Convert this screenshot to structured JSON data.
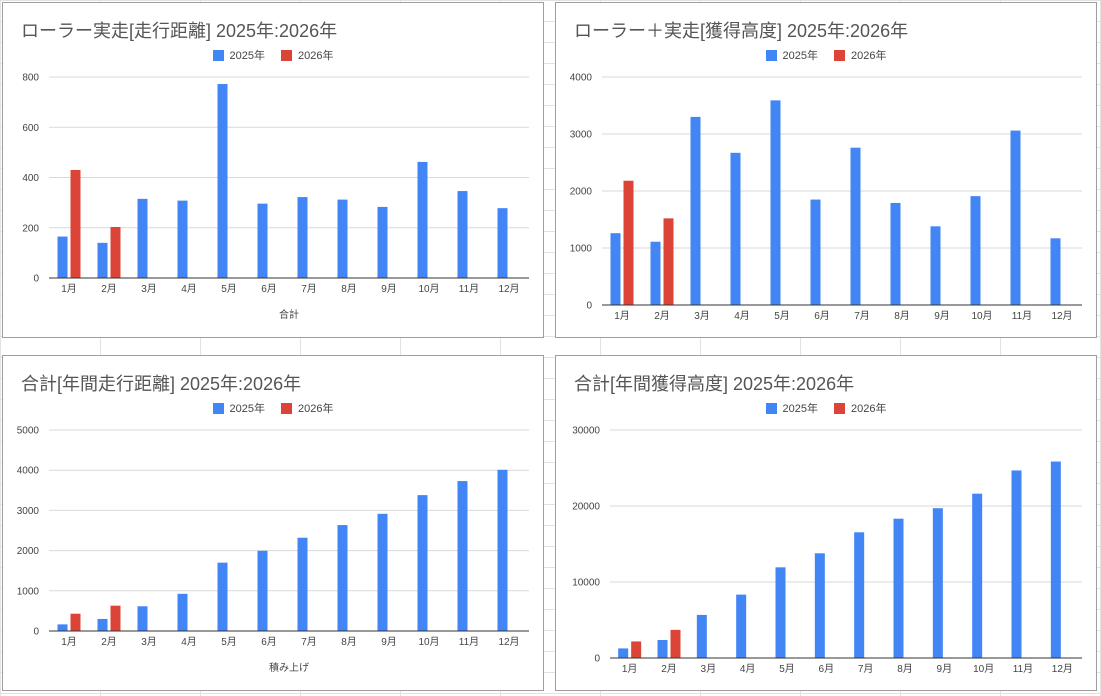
{
  "colors": {
    "series_2025": "#4285f4",
    "series_2026": "#db4437"
  },
  "chart_data": [
    {
      "type": "bar",
      "title": "ローラー実走[走行距離] 2025年:2026年",
      "xlabel": "合計",
      "ylabel": "",
      "categories": [
        "1月",
        "2月",
        "3月",
        "4月",
        "5月",
        "6月",
        "7月",
        "8月",
        "9月",
        "10月",
        "11月",
        "12月"
      ],
      "series": [
        {
          "name": "2025年",
          "values": [
            165,
            140,
            315,
            308,
            772,
            296,
            322,
            312,
            283,
            462,
            346,
            278
          ]
        },
        {
          "name": "2026年",
          "values": [
            430,
            203,
            null,
            null,
            null,
            null,
            null,
            null,
            null,
            null,
            null,
            null
          ]
        }
      ],
      "yticks": [
        0,
        200,
        400,
        600,
        800
      ],
      "ylim": [
        0,
        800
      ],
      "legend": "top",
      "grid": true
    },
    {
      "type": "bar",
      "title": "ローラー＋実走[獲得高度] 2025年:2026年",
      "xlabel": "",
      "ylabel": "",
      "categories": [
        "1月",
        "2月",
        "3月",
        "4月",
        "5月",
        "6月",
        "7月",
        "8月",
        "9月",
        "10月",
        "11月",
        "12月"
      ],
      "series": [
        {
          "name": "2025年",
          "values": [
            1260,
            1110,
            3300,
            2670,
            3590,
            1850,
            2760,
            1790,
            1380,
            1910,
            3060,
            1170
          ]
        },
        {
          "name": "2026年",
          "values": [
            2180,
            1520,
            null,
            null,
            null,
            null,
            null,
            null,
            null,
            null,
            null,
            null
          ]
        }
      ],
      "yticks": [
        0,
        1000,
        2000,
        3000,
        4000
      ],
      "ylim": [
        0,
        4000
      ],
      "legend": "top",
      "grid": true
    },
    {
      "type": "bar",
      "title": "合計[年間走行距離] 2025年:2026年",
      "xlabel": "積み上げ",
      "ylabel": "",
      "categories": [
        "1月",
        "2月",
        "3月",
        "4月",
        "5月",
        "6月",
        "7月",
        "8月",
        "9月",
        "10月",
        "11月",
        "12月"
      ],
      "series": [
        {
          "name": "2025年",
          "values": [
            165,
            300,
            615,
            925,
            1700,
            1995,
            2320,
            2635,
            2915,
            3380,
            3730,
            4010
          ]
        },
        {
          "name": "2026年",
          "values": [
            430,
            630,
            null,
            null,
            null,
            null,
            null,
            null,
            null,
            null,
            null,
            null
          ]
        }
      ],
      "yticks": [
        0,
        1000,
        2000,
        3000,
        4000,
        5000
      ],
      "ylim": [
        0,
        5000
      ],
      "legend": "top",
      "grid": true
    },
    {
      "type": "bar",
      "title": "合計[年間獲得高度] 2025年:2026年",
      "xlabel": "",
      "ylabel": "",
      "categories": [
        "1月",
        "2月",
        "3月",
        "4月",
        "5月",
        "6月",
        "7月",
        "8月",
        "9月",
        "10月",
        "11月",
        "12月"
      ],
      "series": [
        {
          "name": "2025年",
          "values": [
            1260,
            2370,
            5670,
            8340,
            11930,
            13780,
            16540,
            18330,
            19710,
            21620,
            24680,
            25850
          ]
        },
        {
          "name": "2026年",
          "values": [
            2180,
            3700,
            null,
            null,
            null,
            null,
            null,
            null,
            null,
            null,
            null,
            null
          ]
        }
      ],
      "yticks": [
        0,
        10000,
        20000,
        30000
      ],
      "ylim": [
        0,
        30000
      ],
      "legend": "top",
      "grid": true
    }
  ]
}
